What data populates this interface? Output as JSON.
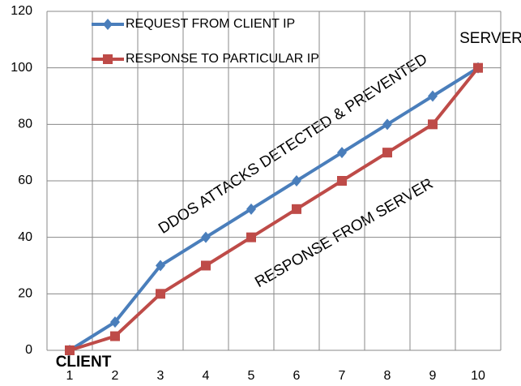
{
  "chart_data": {
    "type": "line",
    "categories": [
      1,
      2,
      3,
      4,
      5,
      6,
      7,
      8,
      9,
      10
    ],
    "series": [
      {
        "name": "REQUEST FROM CLIENT IP",
        "color": "#4a7ebb",
        "marker": "diamond",
        "values": [
          0,
          10,
          30,
          40,
          50,
          60,
          70,
          80,
          90,
          100
        ]
      },
      {
        "name": "RESPONSE TO PARTICULAR IP",
        "color": "#be4b48",
        "marker": "square",
        "values": [
          0,
          5,
          20,
          30,
          40,
          50,
          60,
          70,
          80,
          100
        ]
      }
    ],
    "ylim": [
      0,
      120
    ],
    "yticks": [
      0,
      20,
      40,
      60,
      80,
      100,
      120
    ],
    "grid": true,
    "annotations": [
      "SERVER",
      "CLIENT",
      "DDOS ATTACKS DETECTED & PREVENTED",
      "RESPONSE FROM SERVER"
    ]
  }
}
